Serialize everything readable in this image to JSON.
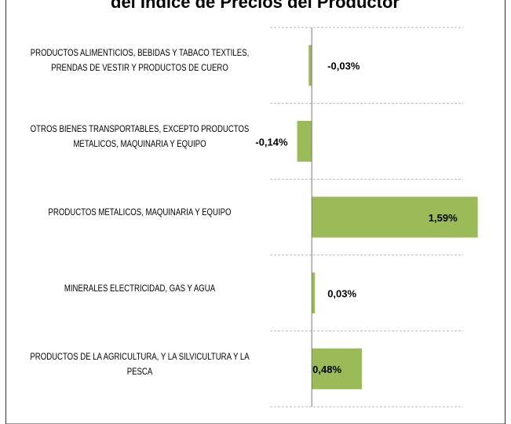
{
  "chart_data": {
    "type": "bar",
    "orientation": "horizontal",
    "title": "del Índice de Precios del Productor",
    "categories": [
      "PRODUCTOS ALIMENTICIOS, BEBIDAS Y TABACO TEXTILES, PRENDAS DE VESTIR Y PRODUCTOS DE CUERO",
      "OTROS BIENES TRANSPORTABLES, EXCEPTO PRODUCTOS METALICOS, MAQUINARIA Y EQUIPO",
      "PRODUCTOS METALICOS, MAQUINARIA Y EQUIPO",
      "MINERALES ELECTRICIDAD, GAS Y AGUA",
      "PRODUCTOS DE LA AGRICULTURA, Y LA SILVICULTURA Y LA PESCA"
    ],
    "values": [
      -0.03,
      -0.14,
      1.59,
      0.03,
      0.48
    ],
    "value_labels": [
      "-0,03%",
      "-0,14%",
      "1,59%",
      "0,03%",
      "0,48%"
    ],
    "color": "#9bbb59",
    "xlim": [
      -0.4,
      1.6
    ],
    "grid": true
  }
}
